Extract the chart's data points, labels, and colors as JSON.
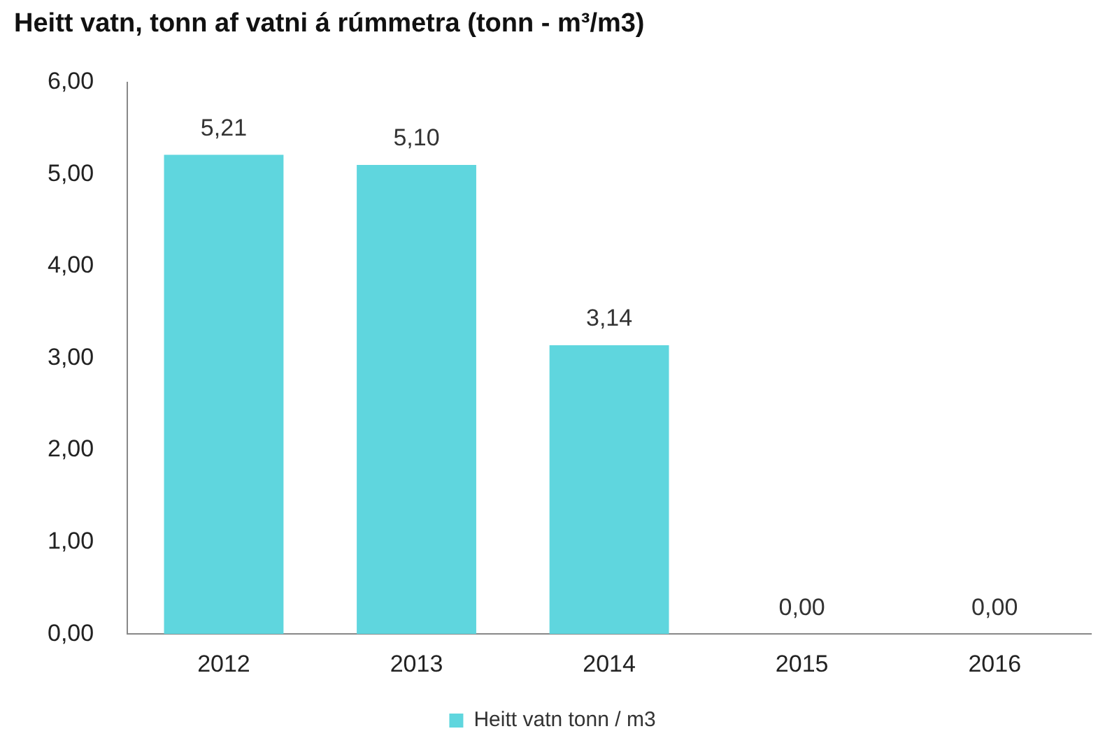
{
  "chart_data": {
    "type": "bar",
    "title": "Heitt vatn, tonn af vatni á rúmmetra (tonn - m³/m3)",
    "categories": [
      "2012",
      "2013",
      "2014",
      "2015",
      "2016"
    ],
    "series": [
      {
        "name": "Heitt vatn tonn / m3",
        "color": "#5fd6de",
        "values": [
          5.21,
          5.1,
          3.14,
          0.0,
          0.0
        ],
        "value_labels": [
          "5,21",
          "5,10",
          "3,14",
          "0,00",
          "0,00"
        ]
      }
    ],
    "ylim": [
      0,
      6
    ],
    "yticks": [
      {
        "value": 0,
        "label": "0,00"
      },
      {
        "value": 1,
        "label": "1,00"
      },
      {
        "value": 2,
        "label": "2,00"
      },
      {
        "value": 3,
        "label": "3,00"
      },
      {
        "value": 4,
        "label": "4,00"
      },
      {
        "value": 5,
        "label": "5,00"
      },
      {
        "value": 6,
        "label": "6,00"
      }
    ],
    "grid": false,
    "legend": "bottom"
  }
}
